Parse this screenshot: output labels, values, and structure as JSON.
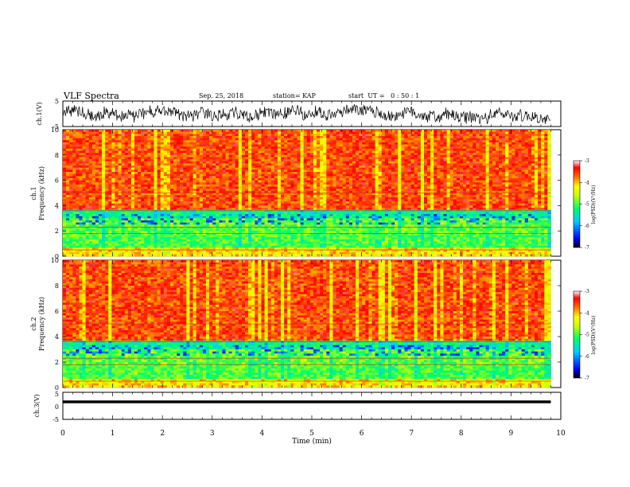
{
  "header": {
    "title": "VLF Spectra",
    "date": "Sep. 25, 2018",
    "station": "station= KAP",
    "start": "start  UT =   0 : 50 : 1"
  },
  "chart_data": [
    {
      "type": "line",
      "panel": "ch1-waveform",
      "ylabel": "ch.1(V)",
      "ylim": [
        -5,
        5
      ],
      "yticks": [
        "5",
        "-5"
      ],
      "xlim": [
        0,
        10
      ]
    },
    {
      "type": "heatmap",
      "panel": "ch1-spectrogram",
      "ylabel": "ch.1\nFrequency (kHz)",
      "ylim": [
        0,
        10
      ],
      "yticks": [
        "0",
        "2",
        "4",
        "6",
        "8",
        "10"
      ],
      "xlim": [
        0,
        10
      ],
      "data_extent_min": 9.8,
      "colorbar": {
        "label": "log(PSD)(V²/Hz)",
        "range": [
          -7,
          -3
        ],
        "ticks": [
          "-3",
          "-4",
          "-5",
          "-6",
          "-7"
        ]
      }
    },
    {
      "type": "heatmap",
      "panel": "ch2-spectrogram",
      "ylabel": "ch.2\nFrequency (kHz)",
      "ylim": [
        0,
        10
      ],
      "yticks": [
        "0",
        "2",
        "4",
        "6",
        "8",
        "10"
      ],
      "xlim": [
        0,
        10
      ],
      "data_extent_min": 9.8,
      "colorbar": {
        "label": "log(PSD)(V²/Hz)",
        "range": [
          -7,
          -3
        ],
        "ticks": [
          "-3",
          "-4",
          "-5",
          "-6",
          "-7"
        ]
      }
    },
    {
      "type": "line",
      "panel": "ch3-waveform",
      "ylabel": "ch.3(V)",
      "ylim": [
        -5,
        5
      ],
      "yticks": [
        "5",
        "0",
        "-5"
      ],
      "xlim": [
        0,
        10
      ],
      "level": 0
    }
  ],
  "xaxis": {
    "label": "Time (min)",
    "ticks": [
      "0",
      "1",
      "2",
      "3",
      "4",
      "5",
      "6",
      "7",
      "8",
      "9",
      "10"
    ]
  }
}
